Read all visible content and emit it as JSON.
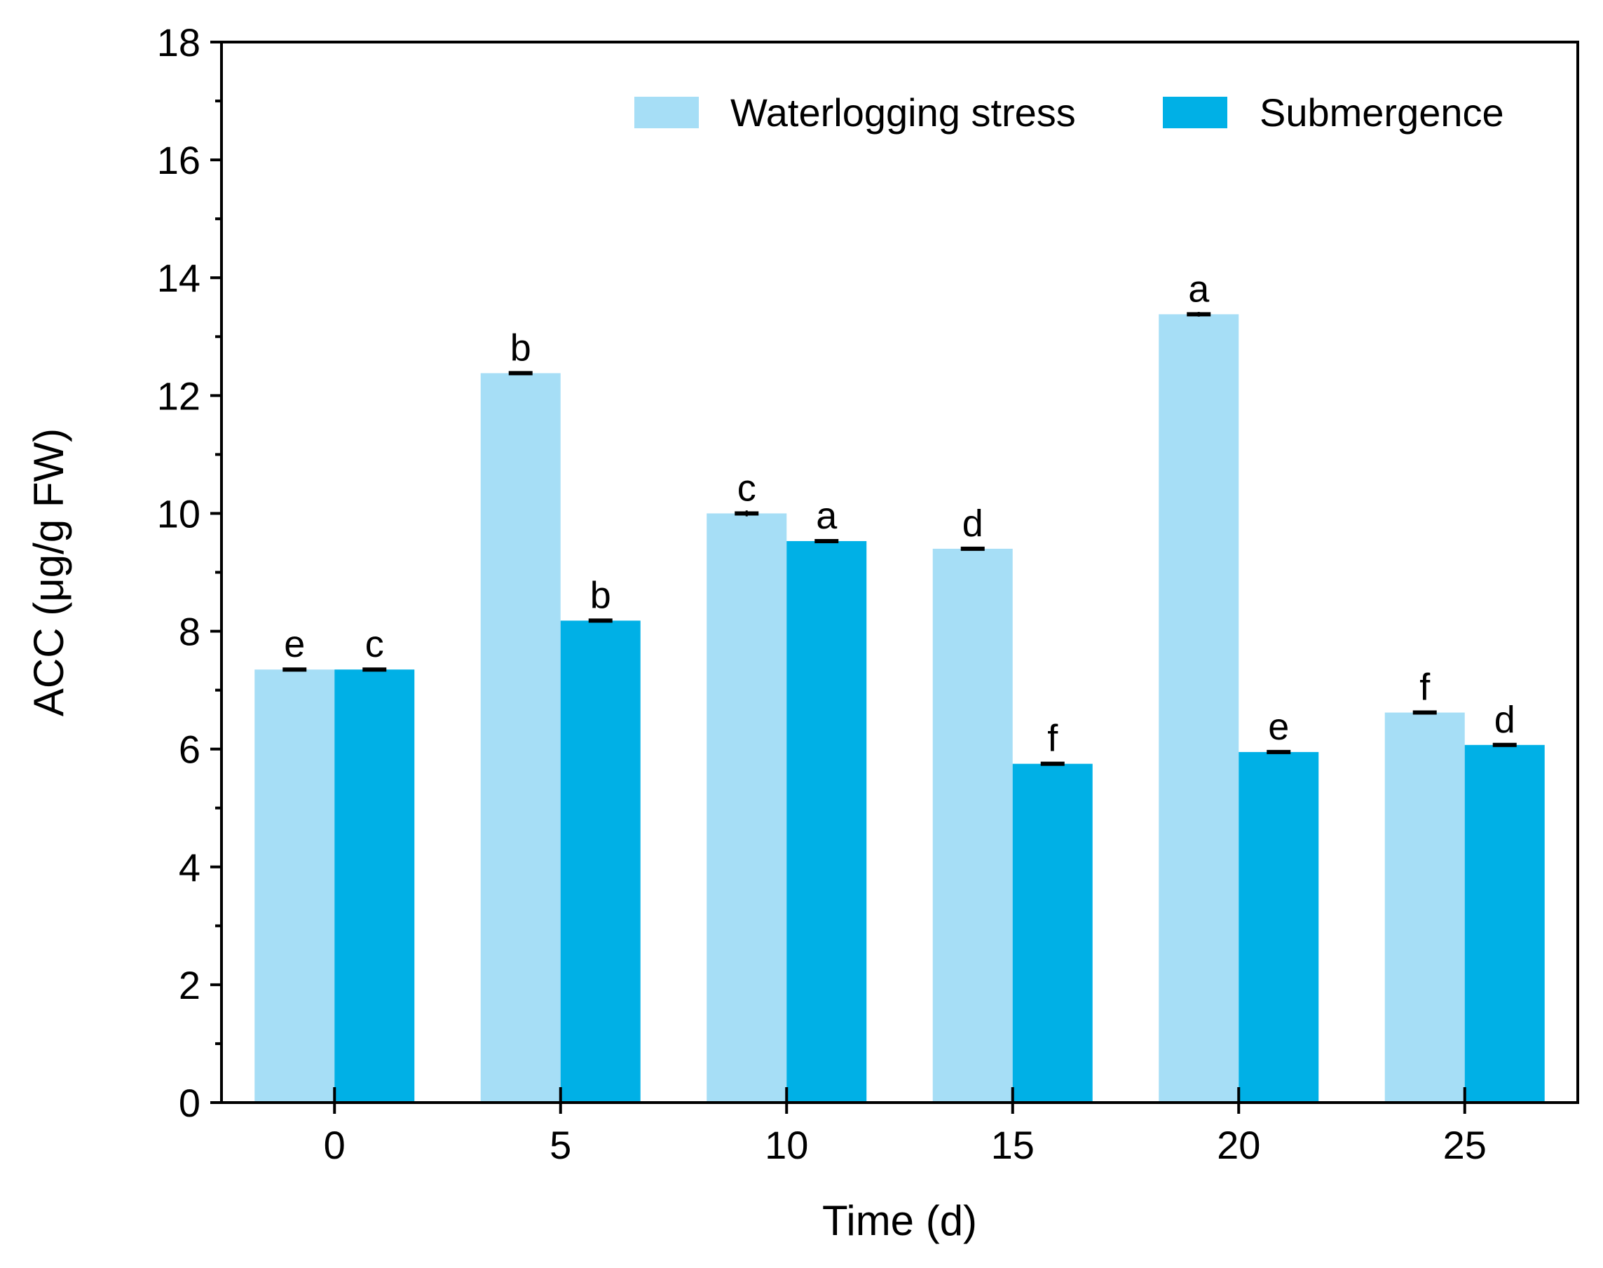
{
  "chart_data": {
    "type": "bar",
    "title": "",
    "xlabel": "Time (d)",
    "ylabel": "ACC (μg/g FW)",
    "categories": [
      "0",
      "5",
      "10",
      "15",
      "20",
      "25"
    ],
    "ylim": [
      0,
      18
    ],
    "yticks": [
      "0",
      "2",
      "4",
      "6",
      "8",
      "10",
      "12",
      "14",
      "16",
      "18"
    ],
    "legend_position": "top-right",
    "series": [
      {
        "name": "Waterlogging stress",
        "color": "#a6def6",
        "values": [
          7.35,
          12.38,
          10.0,
          9.4,
          13.38,
          6.62
        ],
        "errors": [
          0.03,
          0.03,
          0.05,
          0.03,
          0.04,
          0.03
        ],
        "letters": [
          "e",
          "b",
          "c",
          "d",
          "a",
          "f"
        ]
      },
      {
        "name": "Submergence",
        "color": "#00b0e6",
        "values": [
          7.35,
          8.18,
          9.53,
          5.75,
          5.95,
          6.07
        ],
        "errors": [
          0.03,
          0.03,
          0.03,
          0.03,
          0.03,
          0.03
        ],
        "letters": [
          "c",
          "b",
          "a",
          "f",
          "e",
          "d"
        ]
      }
    ]
  }
}
